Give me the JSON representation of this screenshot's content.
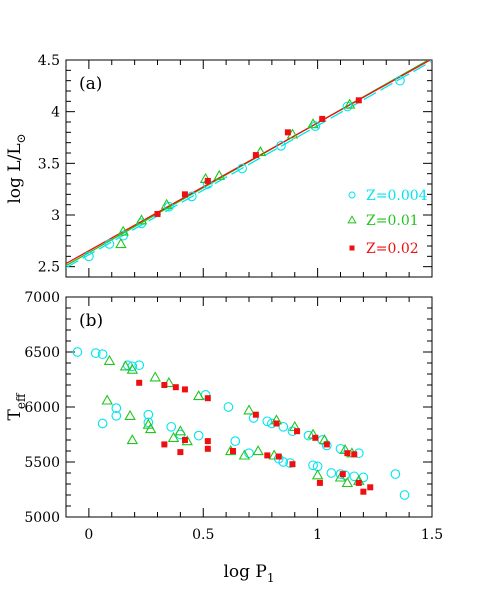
{
  "colors": {
    "z004": "#00e5ee",
    "z01": "#22c51e",
    "z02": "#ee1010",
    "axis": "#000000"
  },
  "chart_data": [
    {
      "id": "panel-a",
      "type": "scatter",
      "panel_label": "(a)",
      "xlim": [
        -0.1,
        1.5
      ],
      "ylim": [
        2.4,
        4.5
      ],
      "yticks": [
        "2.5",
        "3",
        "3.5",
        "4",
        "4.5"
      ],
      "ytick_values": [
        2.5,
        3.0,
        3.5,
        4.0,
        4.5
      ],
      "ylabel": {
        "base": "log  L/L",
        "sub": "⊙"
      },
      "xlabel": "",
      "legend": {
        "placement": "bottom-right",
        "entries": [
          {
            "label": "Z=0.004",
            "marker": "circle",
            "color": "#00e5ee"
          },
          {
            "label": "Z=0.01",
            "marker": "triangle",
            "color": "#22c51e"
          },
          {
            "label": "Z=0.02",
            "marker": "square",
            "color": "#ee1010"
          }
        ]
      },
      "series": [
        {
          "name": "Z=0.004",
          "marker": "circle",
          "color": "#00e5ee",
          "x": [
            0.0,
            0.09,
            0.15,
            0.23,
            0.35,
            0.45,
            0.52,
            0.67,
            0.84,
            0.99,
            1.13,
            1.36
          ],
          "y": [
            2.6,
            2.72,
            2.8,
            2.92,
            3.08,
            3.18,
            3.3,
            3.45,
            3.67,
            3.86,
            4.05,
            4.3
          ]
        },
        {
          "name": "Z=0.01",
          "marker": "triangle",
          "color": "#22c51e",
          "x": [
            0.14,
            0.15,
            0.23,
            0.34,
            0.51,
            0.57,
            0.75,
            0.89,
            0.98,
            1.14
          ],
          "y": [
            2.72,
            2.84,
            2.95,
            3.1,
            3.35,
            3.38,
            3.61,
            3.78,
            3.88,
            4.07
          ]
        },
        {
          "name": "Z=0.02",
          "marker": "square",
          "color": "#ee1010",
          "x": [
            0.3,
            0.42,
            0.52,
            0.73,
            0.87,
            1.02,
            1.18
          ],
          "y": [
            3.01,
            3.2,
            3.33,
            3.58,
            3.8,
            3.93,
            4.11
          ]
        }
      ],
      "fit_lines": [
        {
          "series": "Z=0.004",
          "style": "long-dash",
          "color": "#00e5ee",
          "x": [
            -0.1,
            1.5
          ],
          "y": [
            2.49,
            4.49
          ]
        },
        {
          "series": "Z=0.01",
          "style": "solid",
          "color": "#22c51e",
          "x": [
            -0.1,
            1.5
          ],
          "y": [
            2.51,
            4.52
          ]
        },
        {
          "series": "Z=0.02",
          "style": "solid",
          "color": "#ee1010",
          "x": [
            -0.1,
            1.5
          ],
          "y": [
            2.53,
            4.51
          ]
        }
      ]
    },
    {
      "id": "panel-b",
      "type": "scatter",
      "panel_label": "(b)",
      "xlim": [
        -0.1,
        1.5
      ],
      "ylim": [
        5000,
        7000
      ],
      "xticks": [
        "0",
        "0.5",
        "1",
        "1.5"
      ],
      "xtick_values": [
        0,
        0.5,
        1.0,
        1.5
      ],
      "yticks": [
        "5000",
        "5500",
        "6000",
        "6500",
        "7000"
      ],
      "ytick_values": [
        5000,
        5500,
        6000,
        6500,
        7000
      ],
      "ylabel": {
        "base": "T",
        "sub": "eff"
      },
      "xlabel": {
        "base": "log  P",
        "sub": "1"
      },
      "series": [
        {
          "name": "Z=0.004",
          "marker": "circle",
          "color": "#00e5ee",
          "x": [
            -0.05,
            0.03,
            0.06,
            0.17,
            0.19,
            0.22,
            0.51,
            0.61,
            0.72,
            0.78,
            0.8,
            0.85,
            0.89,
            0.96,
            1.02,
            1.04,
            1.1,
            1.18,
            0.06,
            0.12,
            0.12,
            0.26,
            0.26,
            0.36,
            0.4,
            0.48,
            0.64,
            0.7,
            0.83,
            0.85,
            0.88,
            0.98,
            1.0,
            1.06,
            1.1,
            1.12,
            1.16,
            1.2,
            1.34,
            1.38
          ],
          "y": [
            6500,
            6490,
            6480,
            6380,
            6370,
            6380,
            6110,
            6000,
            5900,
            5870,
            5850,
            5820,
            5780,
            5740,
            5700,
            5650,
            5620,
            5580,
            5850,
            5990,
            5920,
            5930,
            5860,
            5820,
            5750,
            5740,
            5690,
            5580,
            5530,
            5500,
            5490,
            5470,
            5460,
            5400,
            5390,
            5380,
            5370,
            5360,
            5390,
            5200
          ]
        },
        {
          "name": "Z=0.01",
          "marker": "triangle",
          "color": "#22c51e",
          "x": [
            0.09,
            0.16,
            0.19,
            0.29,
            0.35,
            0.48,
            0.7,
            0.82,
            0.9,
            0.98,
            1.03,
            1.12,
            1.15,
            0.08,
            0.18,
            0.19,
            0.26,
            0.27,
            0.37,
            0.4,
            0.43,
            0.62,
            0.68,
            0.74,
            0.81,
            1.0,
            1.1,
            1.13,
            1.18
          ],
          "y": [
            6420,
            6370,
            6340,
            6270,
            6220,
            6100,
            5970,
            5880,
            5820,
            5750,
            5700,
            5610,
            5580,
            6060,
            5920,
            5700,
            5840,
            5800,
            5720,
            5780,
            5690,
            5600,
            5560,
            5600,
            5560,
            5380,
            5360,
            5310,
            5330
          ]
        },
        {
          "name": "Z=0.02",
          "marker": "square",
          "color": "#ee1010",
          "x": [
            0.22,
            0.33,
            0.38,
            0.42,
            0.52,
            0.73,
            0.82,
            0.91,
            0.99,
            1.04,
            1.13,
            1.16,
            0.33,
            0.4,
            0.42,
            0.52,
            0.52,
            0.63,
            0.78,
            0.83,
            0.89,
            1.01,
            1.11,
            1.18,
            1.2,
            1.23
          ],
          "y": [
            6220,
            6200,
            6180,
            6160,
            6080,
            5930,
            5850,
            5780,
            5720,
            5660,
            5580,
            5570,
            5660,
            5590,
            5700,
            5620,
            5690,
            5600,
            5560,
            5550,
            5480,
            5310,
            5390,
            5310,
            5230,
            5270
          ]
        }
      ]
    }
  ]
}
